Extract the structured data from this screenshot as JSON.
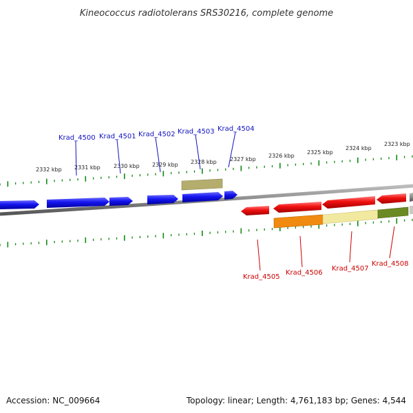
{
  "title": "Kineococcus radiotolerans SRS30216, complete genome",
  "footer": {
    "accession": "Accession: NC_009664",
    "topology": "Topology: linear; Length: 4,761,183 bp; Genes: 4,544"
  },
  "colors": {
    "forward": "#1010e0",
    "reverse": "#e00000",
    "backbone": "#8c8c8c",
    "ticks": "#118811",
    "khaki": "#b5ad6d",
    "orange": "#f08a10",
    "pale_yellow": "#f2e9a0",
    "olive": "#6b8a23"
  },
  "kbp_labels": [
    "2332 kbp",
    "2331 kbp",
    "2330 kbp",
    "2329 kbp",
    "2328 kbp",
    "2327 kbp",
    "2326 kbp",
    "2325 kbp",
    "2324 kbp",
    "2323 kbp"
  ],
  "forward_genes": [
    "Krad_4500",
    "Krad_4501",
    "Krad_4502",
    "Krad_4503",
    "Krad_4504"
  ],
  "reverse_genes": [
    "Krad_4505",
    "Krad_4506",
    "Krad_4507",
    "Krad_4508"
  ]
}
